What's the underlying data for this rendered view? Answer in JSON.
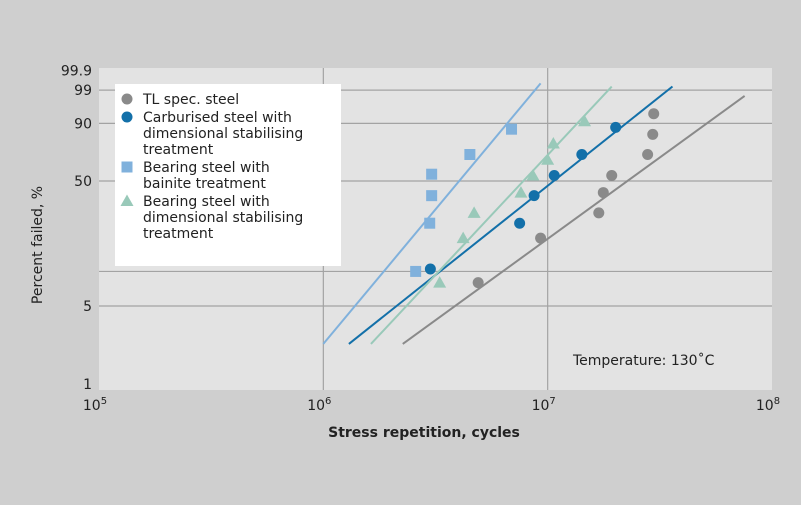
{
  "chart_data": {
    "type": "scatter",
    "title": "",
    "xlabel": "Stress repetition, cycles",
    "ylabel": "Percent failed, %",
    "x_scale": "log",
    "y_scale": "weibull",
    "xlim": [
      100000,
      100000000
    ],
    "ylim": [
      1,
      99.9
    ],
    "x_ticks": [
      {
        "value": 100000,
        "base": "10",
        "exp": "5"
      },
      {
        "value": 1000000,
        "base": "10",
        "exp": "6"
      },
      {
        "value": 10000000,
        "base": "10",
        "exp": "7"
      },
      {
        "value": 100000000,
        "base": "10",
        "exp": "8"
      }
    ],
    "y_ticks": [
      {
        "value": 99.9,
        "label": "99.9"
      },
      {
        "value": 99,
        "label": "99"
      },
      {
        "value": 90,
        "label": "90"
      },
      {
        "value": 50,
        "label": "50"
      },
      {
        "value": 10,
        "label": ""
      },
      {
        "value": 5,
        "label": "5"
      },
      {
        "value": 1,
        "label": "1"
      }
    ],
    "grid": true,
    "legend_position": "top-left",
    "annotation": "Temperature: 130˚C",
    "series": [
      {
        "name": "TL spec. steel",
        "legend_lines": [
          "TL spec. steel"
        ],
        "marker": "circle",
        "color": "#8a8a8a",
        "points": [
          [
            29700000,
            94
          ],
          [
            29400000,
            84
          ],
          [
            27900000,
            70
          ],
          [
            19300000,
            54
          ],
          [
            17700000,
            42
          ],
          [
            16900000,
            30
          ],
          [
            9300000,
            19
          ],
          [
            4900000,
            8
          ]
        ],
        "fit_line": [
          [
            2260000,
            2.3
          ],
          [
            75500000,
            98.3
          ]
        ]
      },
      {
        "name": "Carburised steel with dimensional stabilising treatment",
        "legend_lines": [
          "Carburised steel with",
          "dimensional stabilising",
          "treatment"
        ],
        "marker": "circle",
        "color": "#1370a9",
        "points": [
          [
            20100000,
            88
          ],
          [
            14200000,
            70
          ],
          [
            10700000,
            54
          ],
          [
            8700000,
            40
          ],
          [
            7500000,
            25
          ],
          [
            3000000,
            10.5
          ]
        ],
        "fit_line": [
          [
            1300000,
            2.3
          ],
          [
            36000000,
            99.3
          ]
        ]
      },
      {
        "name": "Bearing steel with bainite treatment",
        "legend_lines": [
          "Bearing steel with",
          "bainite treatment"
        ],
        "marker": "square",
        "color": "#80b1dc",
        "points": [
          [
            6900000,
            87
          ],
          [
            4500000,
            70
          ],
          [
            3040000,
            55
          ],
          [
            3040000,
            40
          ],
          [
            2980000,
            25
          ],
          [
            2580000,
            10
          ]
        ],
        "fit_line": [
          [
            1000000,
            2.3
          ],
          [
            9300000,
            99.5
          ]
        ]
      },
      {
        "name": "Bearing steel with dimensional stabilising treatment",
        "legend_lines": [
          "Bearing steel with",
          "dimensional stabilising",
          "treatment"
        ],
        "marker": "triangle",
        "color": "#99c9b9",
        "points": [
          [
            14600000,
            91
          ],
          [
            10600000,
            78
          ],
          [
            10000000,
            66
          ],
          [
            8600000,
            54
          ],
          [
            7600000,
            42
          ],
          [
            4700000,
            30
          ],
          [
            4200000,
            19
          ],
          [
            3300000,
            8
          ]
        ],
        "fit_line": [
          [
            1630000,
            2.3
          ],
          [
            19300000,
            99.3
          ]
        ]
      }
    ]
  }
}
